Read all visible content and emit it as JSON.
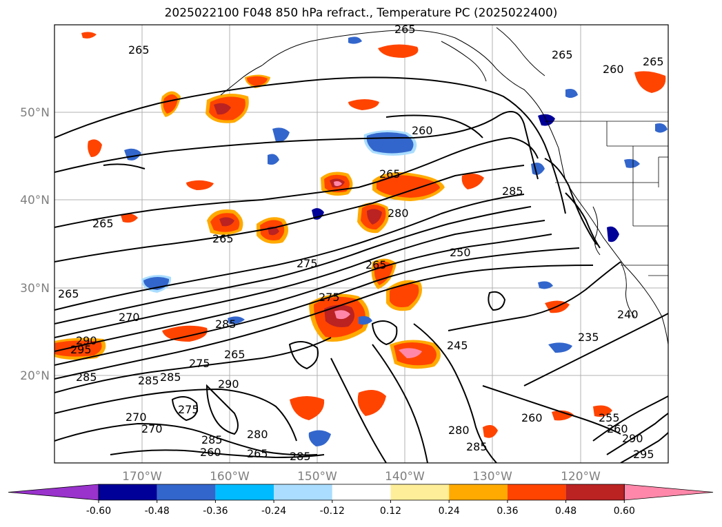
{
  "title": "2025022100 F048 850 hPa refract., Temperature PC (2025022400)",
  "lat_labels": [
    "50°N",
    "40°N",
    "30°N",
    "20°N"
  ],
  "lon_labels": [
    "170°W",
    "160°W",
    "150°W",
    "140°W",
    "130°W",
    "120°W"
  ],
  "contour_labels": [
    "265",
    "265",
    "260",
    "265",
    "265",
    "260",
    "265",
    "265",
    "280",
    "285",
    "275",
    "265",
    "250",
    "265",
    "270",
    "285",
    "275",
    "290",
    "295",
    "265",
    "275",
    "245",
    "285",
    "285",
    "290",
    "285",
    "275",
    "270",
    "270",
    "285",
    "280",
    "260",
    "265",
    "285",
    "255",
    "235",
    "240",
    "260",
    "280",
    "285",
    "260",
    "290",
    "295",
    "265"
  ],
  "colorbar": {
    "ticks": [
      "-0.60",
      "-0.48",
      "-0.36",
      "-0.24",
      "-0.12",
      "0.12",
      "0.24",
      "0.36",
      "0.48",
      "0.60"
    ],
    "colors": [
      "#9933cc",
      "#000099",
      "#3366cc",
      "#00bbff",
      "#aaddff",
      "#ffffff",
      "#ffee99",
      "#ffaa00",
      "#ff4400",
      "#bb2222",
      "#ff88aa"
    ]
  }
}
